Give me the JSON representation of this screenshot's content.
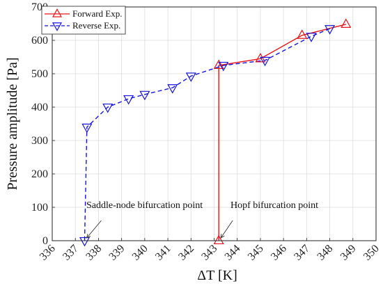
{
  "chart_data": {
    "type": "line",
    "xlabel": "ΔT [K]",
    "ylabel": "Pressure amplitude [Pa]",
    "xlim": [
      336,
      350
    ],
    "ylim": [
      0,
      700
    ],
    "xticks": [
      336,
      337,
      338,
      339,
      340,
      341,
      342,
      343,
      344,
      345,
      346,
      347,
      348,
      349,
      350
    ],
    "yticks": [
      0,
      100,
      200,
      300,
      400,
      500,
      600,
      700
    ],
    "grid": true,
    "legend": "top-left",
    "series": [
      {
        "name": "Forward Exp.",
        "color": "#e8151b",
        "marker": "triangle-up",
        "line": "solid",
        "x": [
          343.2,
          343.2,
          345.0,
          346.8,
          348.7
        ],
        "y": [
          0,
          525,
          545,
          615,
          648
        ]
      },
      {
        "name": "Reverse Exp.",
        "color": "#1515e0",
        "marker": "triangle-down",
        "line": "dashed",
        "x": [
          348.0,
          347.2,
          345.2,
          343.4,
          342.0,
          341.2,
          340.0,
          339.3,
          338.4,
          337.5,
          337.4
        ],
        "y": [
          635,
          612,
          540,
          525,
          493,
          458,
          438,
          425,
          400,
          340,
          0
        ]
      }
    ],
    "annotations": [
      {
        "text": "Saddle-node bifurcation point",
        "x": 337.4,
        "y": 0
      },
      {
        "text": "Hopf bifurcation point",
        "x": 343.2,
        "y": 0
      }
    ]
  }
}
